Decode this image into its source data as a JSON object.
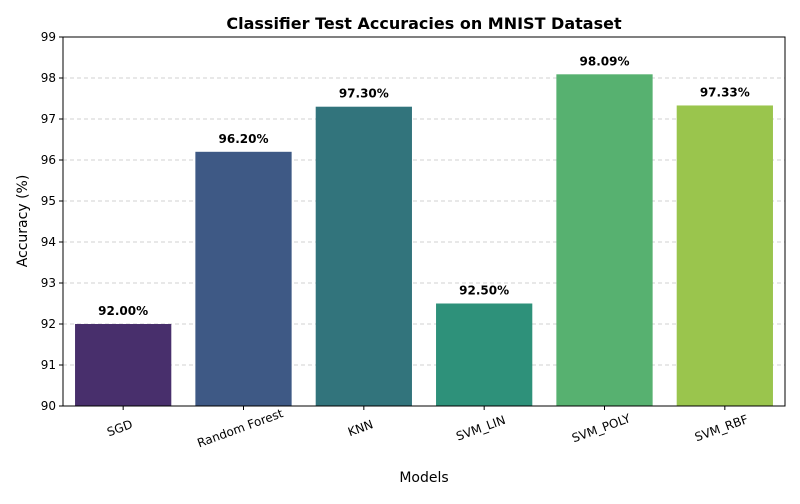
{
  "chart_data": {
    "type": "bar",
    "title": "Classifier Test Accuracies on MNIST Dataset",
    "xlabel": "Models",
    "ylabel": "Accuracy (%)",
    "categories": [
      "SGD",
      "Random Forest",
      "KNN",
      "SVM_LIN",
      "SVM_POLY",
      "SVM_RBF"
    ],
    "values": [
      92.0,
      96.2,
      97.3,
      92.5,
      98.09,
      97.33
    ],
    "data_labels": [
      "92.00%",
      "96.20%",
      "97.30%",
      "92.50%",
      "98.09%",
      "97.33%"
    ],
    "colors": [
      "#482f6c",
      "#3e5985",
      "#32747c",
      "#2e917a",
      "#57b170",
      "#9ac54d"
    ],
    "ylim": [
      90,
      99
    ],
    "yticks": [
      "90",
      "91",
      "92",
      "93",
      "94",
      "95",
      "96",
      "97",
      "98",
      "99"
    ],
    "grid": "y-dashed",
    "xtick_rotation": -20
  }
}
